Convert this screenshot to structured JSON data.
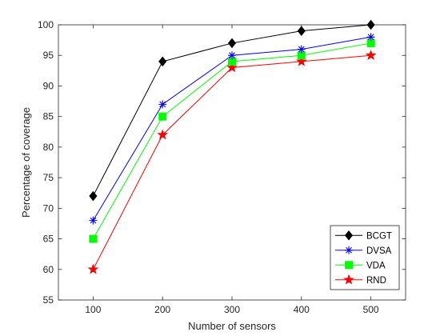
{
  "chart_data": {
    "type": "line",
    "title": "",
    "xlabel": "Number of sensors",
    "ylabel": "Percentage of coverage",
    "x": [
      100,
      200,
      300,
      400,
      500
    ],
    "xlim": [
      50,
      550
    ],
    "ylim": [
      55,
      100
    ],
    "xticks": [
      "100",
      "200",
      "300",
      "400",
      "500"
    ],
    "yticks": [
      "55",
      "60",
      "65",
      "70",
      "75",
      "80",
      "85",
      "90",
      "95",
      "100"
    ],
    "grid": false,
    "legend_position": "bottom-right",
    "series": [
      {
        "name": "BCGT",
        "values": [
          72,
          94,
          97,
          99,
          100
        ],
        "color": "#000000",
        "marker": "diamond"
      },
      {
        "name": "DVSA",
        "values": [
          68,
          87,
          95,
          96,
          98
        ],
        "color": "#0000ff",
        "marker": "asterisk"
      },
      {
        "name": "VDA",
        "values": [
          65,
          85,
          94,
          95,
          97
        ],
        "color": "#00ff00",
        "marker": "square"
      },
      {
        "name": "RND",
        "values": [
          60,
          82,
          93,
          94,
          95
        ],
        "color": "#ff0000",
        "marker": "star"
      }
    ]
  }
}
